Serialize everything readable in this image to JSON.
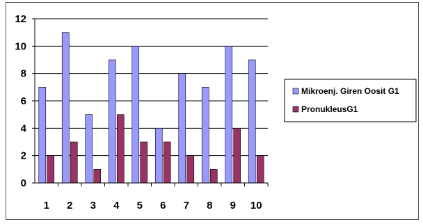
{
  "chart_data": {
    "type": "bar",
    "title": "",
    "xlabel": "",
    "ylabel": "",
    "categories": [
      "1",
      "2",
      "3",
      "4",
      "5",
      "6",
      "7",
      "8",
      "9",
      "10"
    ],
    "ylim": [
      0,
      12
    ],
    "yticks": [
      0,
      2,
      4,
      6,
      8,
      10,
      12
    ],
    "grid": true,
    "legend_position": "right",
    "series": [
      {
        "name": "Mikroenj. Giren Oosit G1",
        "values": [
          7,
          11,
          5,
          9,
          10,
          4,
          8,
          7,
          10,
          9
        ],
        "color": "#9999ff"
      },
      {
        "name": "PronukleusG1",
        "values": [
          2,
          3,
          1,
          5,
          3,
          3,
          2,
          1,
          4,
          2
        ],
        "color": "#993366"
      }
    ]
  }
}
